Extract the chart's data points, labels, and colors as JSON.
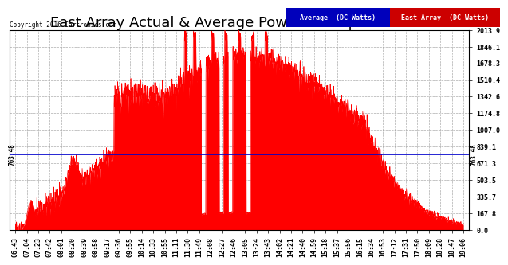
{
  "title": "East Array Actual & Average Power Sun Apr 3  19:22",
  "copyright": "Copyright 2016 Cartronics.com",
  "legend_avg_color": "#0000bb",
  "legend_east_color": "#cc0000",
  "legend_avg_label": "Average  (DC Watts)",
  "legend_east_label": "East Array  (DC Watts)",
  "ymin": 0.0,
  "ymax": 2013.9,
  "yticks": [
    0.0,
    167.8,
    335.7,
    503.5,
    671.3,
    839.1,
    1007.0,
    1174.8,
    1342.6,
    1510.4,
    1678.3,
    1846.1,
    2013.9
  ],
  "avg_line_value": 763.48,
  "avg_line_color": "#0000cc",
  "fill_color": "#ff0000",
  "bg_color": "#ffffff",
  "grid_color": "#999999",
  "xtick_labels": [
    "06:43",
    "07:04",
    "07:23",
    "07:42",
    "08:01",
    "08:20",
    "08:39",
    "08:58",
    "09:17",
    "09:36",
    "09:55",
    "10:14",
    "10:33",
    "10:55",
    "11:11",
    "11:30",
    "11:49",
    "12:08",
    "12:27",
    "12:46",
    "13:05",
    "13:24",
    "13:43",
    "14:02",
    "14:21",
    "14:40",
    "14:59",
    "15:18",
    "15:37",
    "15:56",
    "16:15",
    "16:34",
    "16:53",
    "17:12",
    "17:31",
    "17:50",
    "18:09",
    "18:28",
    "18:47",
    "19:06"
  ],
  "title_fontsize": 13,
  "tick_fontsize": 6,
  "avg_label_text": "763.48"
}
